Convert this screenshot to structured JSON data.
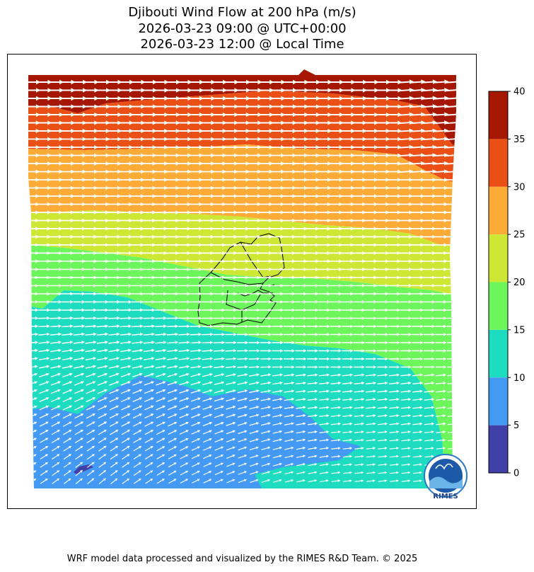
{
  "title": {
    "line1": "Djibouti Wind Flow at 200 hPa (m/s)",
    "line2": "2026-03-23 09:00 @ UTC+00:00",
    "line3": "2026-03-23 12:00 @ Local Time"
  },
  "footer": "WRF model data processed and visualized by the RIMES R&D Team. © 2025",
  "logo": {
    "text": "RIMES",
    "icon": "rimes-globe-logo"
  },
  "colors": {
    "band_0_5": "#4040A8",
    "band_5_10": "#4499F2",
    "band_10_15": "#1DDCC0",
    "band_15_20": "#6CF65C",
    "band_20_25": "#CCE834",
    "band_25_30": "#FBAB36",
    "band_30_35": "#EA5016",
    "band_35_40": "#A51702",
    "vectors": "#ffffff",
    "border": "#000000"
  },
  "chart_data": {
    "type": "heatmap",
    "variable": "wind speed with flow vectors",
    "units": "m/s",
    "colorbar": {
      "ticks": [
        "0",
        "5",
        "10",
        "15",
        "20",
        "25",
        "30",
        "35",
        "40"
      ],
      "bounds": [
        0,
        5,
        10,
        15,
        20,
        25,
        30,
        35,
        40
      ]
    },
    "regions": [
      {
        "area": "north edge",
        "speed_range": [
          35,
          40
        ]
      },
      {
        "area": "north",
        "speed_range": [
          30,
          35
        ]
      },
      {
        "area": "north-central",
        "speed_range": [
          25,
          30
        ]
      },
      {
        "area": "central (Djibouti)",
        "speed_range": [
          20,
          25
        ]
      },
      {
        "area": "central-south",
        "speed_range": [
          15,
          20
        ]
      },
      {
        "area": "south",
        "speed_range": [
          10,
          15
        ]
      },
      {
        "area": "southwest",
        "speed_range": [
          5,
          10
        ]
      },
      {
        "area": "southwest pocket",
        "speed_range": [
          0,
          5
        ]
      }
    ],
    "flow_direction": "west to east, turning southwest-to-northeast in the south"
  }
}
